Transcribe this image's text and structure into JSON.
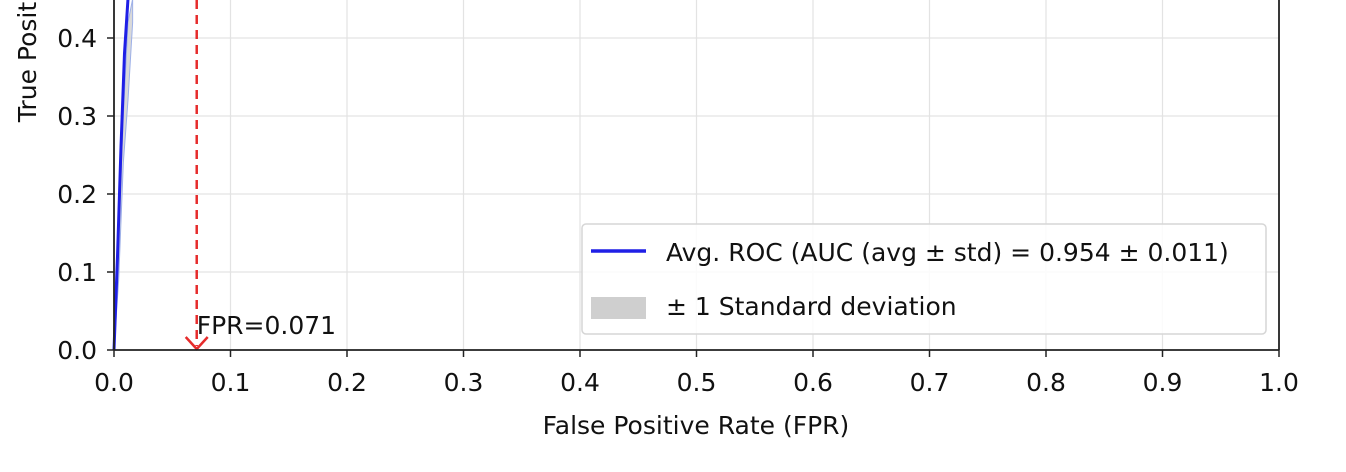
{
  "chart_data": {
    "type": "line",
    "xlabel": "False Positive Rate (FPR)",
    "ylabel": "True Posit",
    "xlim": [
      0.0,
      1.0
    ],
    "ylim": [
      0.0,
      0.45
    ],
    "x_ticks": [
      "0.0",
      "0.1",
      "0.2",
      "0.3",
      "0.4",
      "0.5",
      "0.6",
      "0.7",
      "0.8",
      "0.9",
      "1.0"
    ],
    "y_ticks": [
      "0.0",
      "0.1",
      "0.2",
      "0.3",
      "0.4"
    ],
    "grid": true,
    "legend_placement": "lower-right",
    "series": [
      {
        "name": "Avg. ROC (AUC (avg ± std) = 0.954 ± 0.011)",
        "color": "#1f1fe6",
        "x": [
          0.0,
          0.003,
          0.006,
          0.009,
          0.012
        ],
        "y": [
          0.0,
          0.12,
          0.26,
          0.38,
          0.45
        ]
      }
    ],
    "std_band": {
      "name": "± 1 Standard deviation",
      "color": "#cfcfcf",
      "x": [
        0.0,
        0.004,
        0.008,
        0.012,
        0.016
      ],
      "y_lower": [
        0.0,
        0.09,
        0.24,
        0.32,
        0.42
      ],
      "y_upper": [
        0.0,
        0.15,
        0.3,
        0.42,
        0.45
      ]
    },
    "threshold": {
      "x": 0.071,
      "label": "FPR=0.071",
      "color": "#e62b2b"
    }
  }
}
